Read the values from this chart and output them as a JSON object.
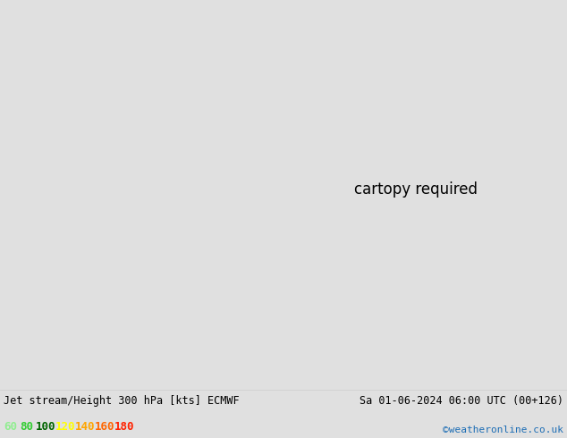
{
  "title_left": "Jet stream/Height 300 hPa [kts] ECMWF",
  "title_right": "Sa 01-06-2024 06:00 UTC (00+126)",
  "credit": "©weatheronline.co.uk",
  "legend_values": [
    "60",
    "80",
    "100",
    "120",
    "140",
    "160",
    "180"
  ],
  "legend_colors": [
    "#90ee90",
    "#32cd32",
    "#006400",
    "#ffff00",
    "#ffa500",
    "#ff4500",
    "#ff0000"
  ],
  "background_color": "#e0e0e0",
  "land_color": "#b5e6a0",
  "land_edge_color": "#888888",
  "ocean_color": "#e0e0e0",
  "title_fontsize": 8.5,
  "credit_color": "#1e6eb5",
  "credit_fontsize": 8,
  "legend_fontsize": 9,
  "fig_width": 6.34,
  "fig_height": 4.9,
  "dpi": 100,
  "map_extent": [
    -110,
    40,
    -75,
    15
  ],
  "contour_color": "#111111",
  "contour_lw": 0.9
}
